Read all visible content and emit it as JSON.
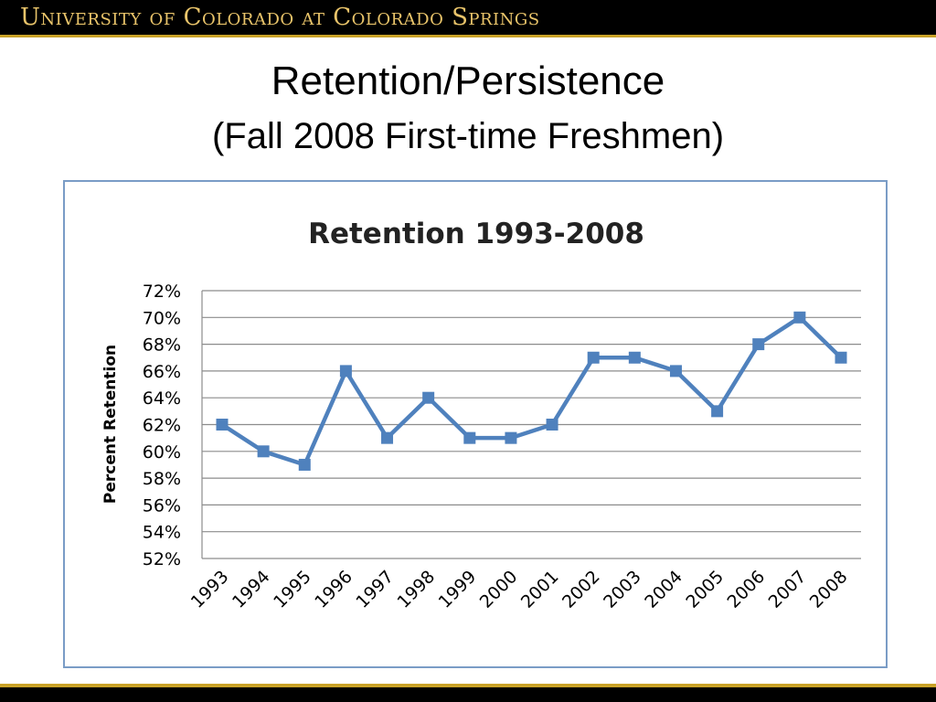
{
  "header": {
    "banner_text": "University of Colorado at Colorado Springs"
  },
  "slide": {
    "title": "Retention/Persistence",
    "subtitle": "(Fall 2008 First-time Freshmen)"
  },
  "colors": {
    "banner_bg": "#000000",
    "banner_text": "#e9c46a",
    "gold_rule": "#c9a227",
    "series": "#4f81bd",
    "frame_border": "#7a9cc6",
    "gridline": "#8c8c8c"
  },
  "chart_data": {
    "type": "line",
    "title": "Retention 1993-2008",
    "xlabel": "",
    "ylabel": "Percent Retention",
    "categories": [
      "1993",
      "1994",
      "1995",
      "1996",
      "1997",
      "1998",
      "1999",
      "2000",
      "2001",
      "2002",
      "2003",
      "2004",
      "2005",
      "2006",
      "2007",
      "2008"
    ],
    "series": [
      {
        "values": [
          62,
          60,
          59,
          66,
          61,
          64,
          61,
          61,
          62,
          67,
          67,
          66,
          63,
          68,
          70,
          67
        ]
      }
    ],
    "ylim": [
      52,
      72
    ],
    "yticks": [
      72,
      70,
      68,
      66,
      64,
      62,
      60,
      58,
      56,
      54,
      52
    ],
    "ytick_labels": [
      "72%",
      "70%",
      "68%",
      "66%",
      "64%",
      "62%",
      "60%",
      "58%",
      "56%",
      "54%",
      "52%"
    ],
    "grid": true,
    "legend": "none",
    "marker": "square"
  }
}
